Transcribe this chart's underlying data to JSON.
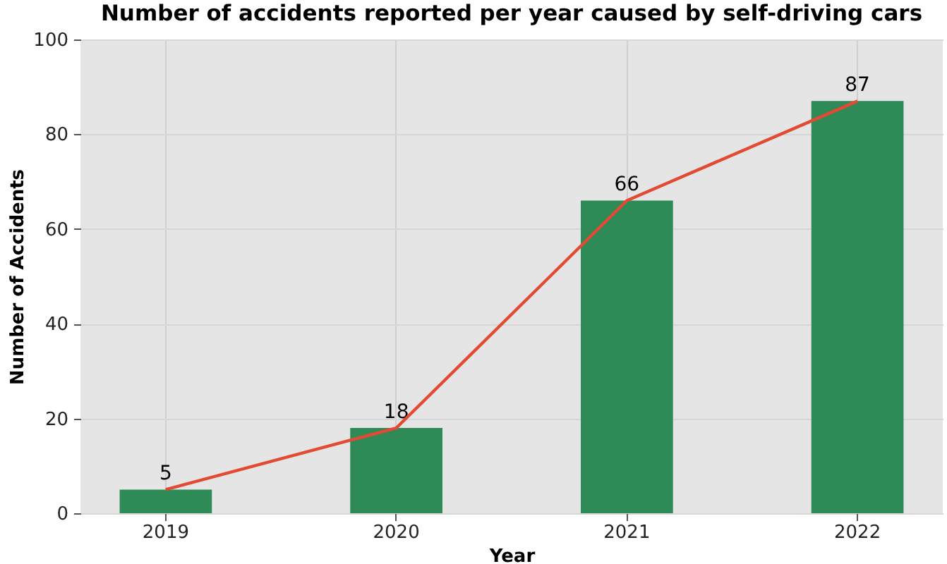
{
  "chart_data": {
    "type": "bar",
    "title": "Number of accidents reported per year caused by self-driving cars",
    "xlabel": "Year",
    "ylabel": "Number of Accidents",
    "categories": [
      "2019",
      "2020",
      "2021",
      "2022"
    ],
    "series": [
      {
        "color": "#2e8b57",
        "values": [
          5,
          18,
          66,
          87
        ],
        "value_labels": [
          "5",
          "18",
          "66",
          "87"
        ]
      },
      {
        "type": "line",
        "color": "#e34a33",
        "values": [
          5,
          18,
          66,
          87
        ]
      }
    ],
    "ylim": [
      0,
      100
    ],
    "yticks": [
      0,
      20,
      40,
      60,
      80,
      100
    ],
    "grid": true
  }
}
